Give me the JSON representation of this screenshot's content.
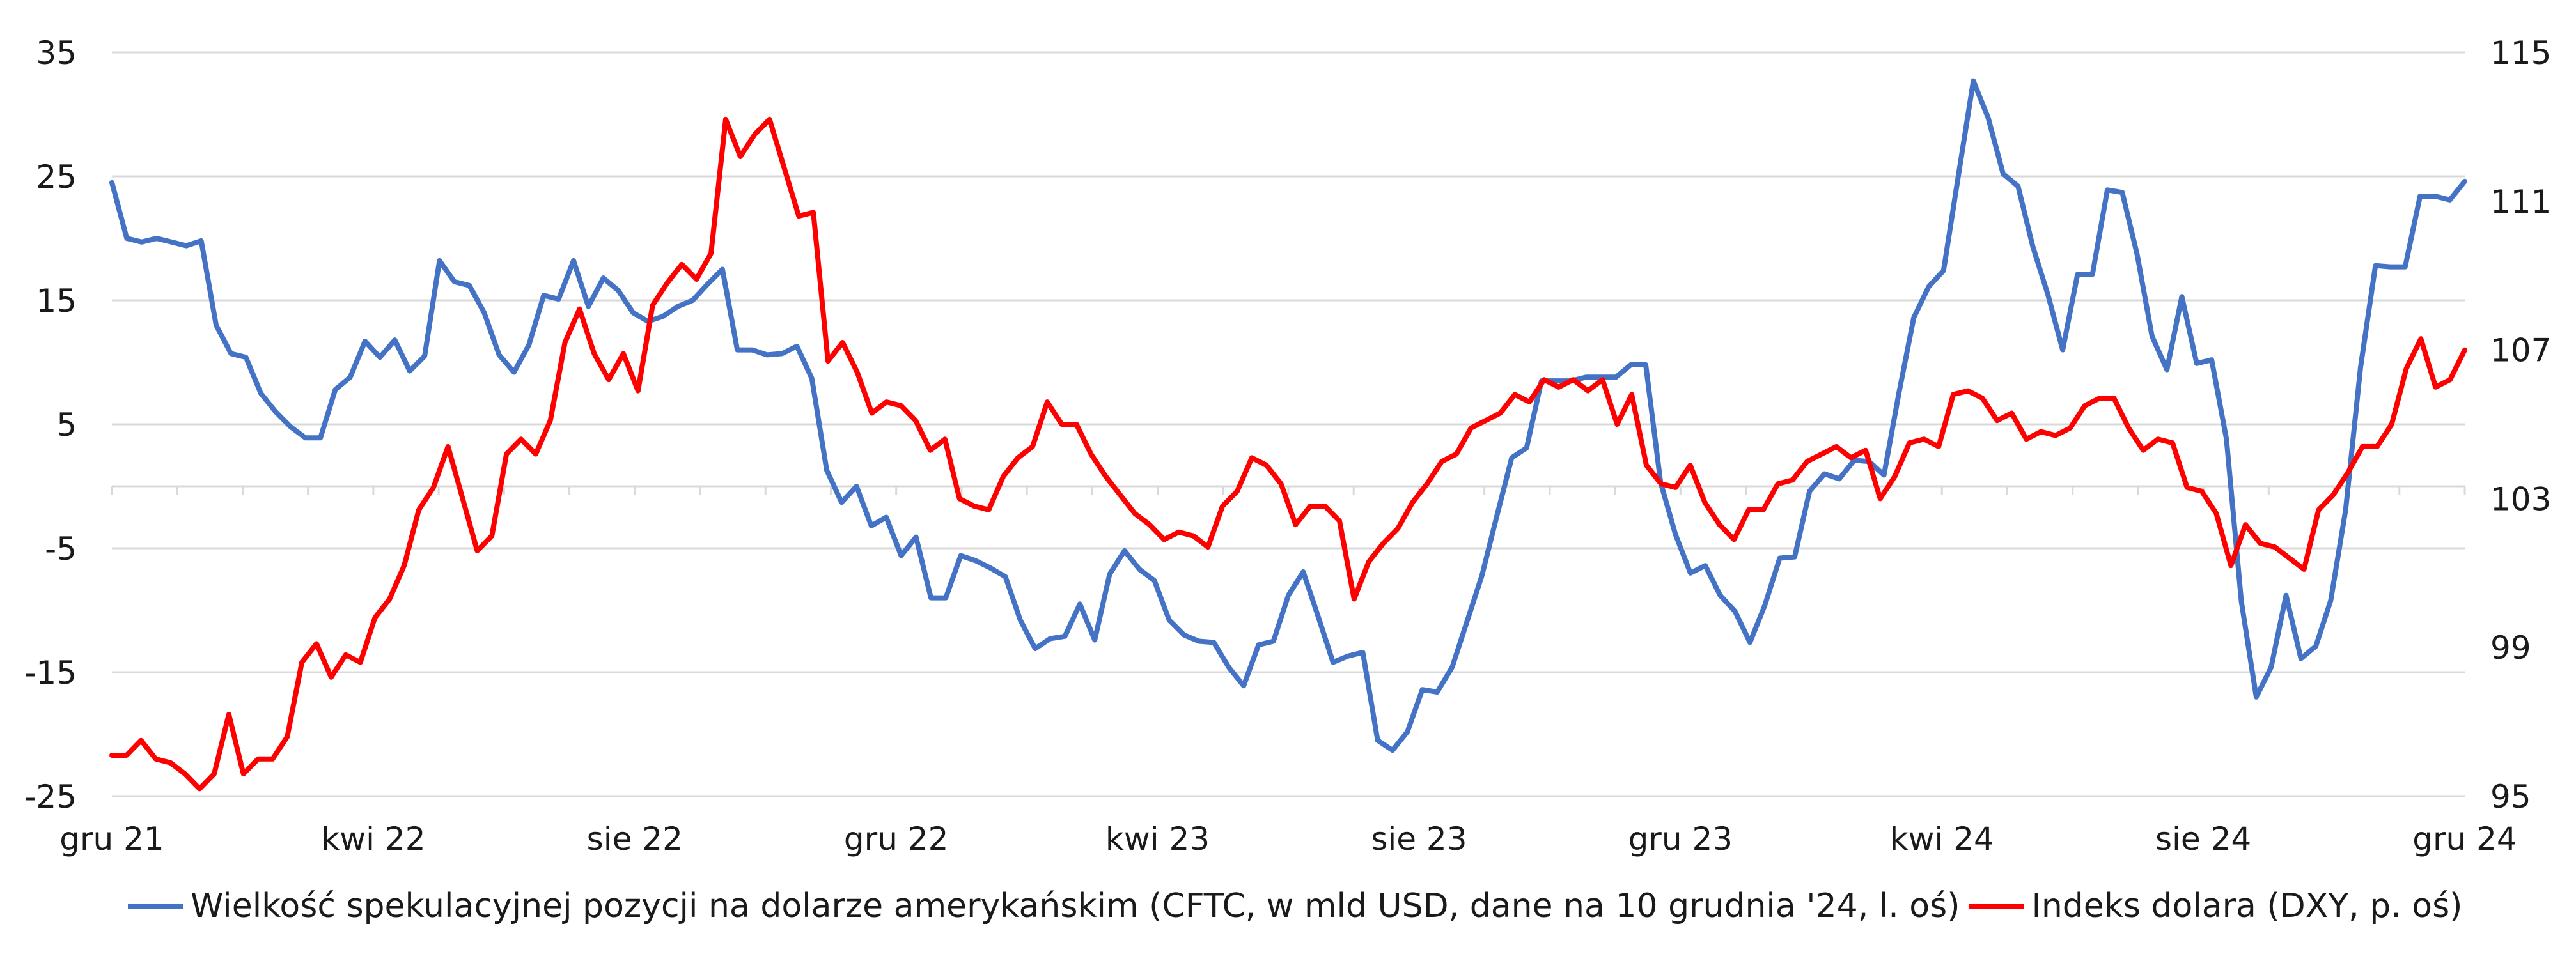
{
  "chart_data": {
    "type": "line",
    "left_axis": {
      "ylim": [
        -25,
        35
      ],
      "ticks": [
        "35",
        "25",
        "15",
        "5",
        "-5",
        "-15",
        "-25"
      ]
    },
    "right_axis": {
      "ylim": [
        95,
        115
      ],
      "ticks": [
        "115",
        "111",
        "107",
        "103",
        "99",
        "95"
      ]
    },
    "x_ticks": [
      "gru 21",
      "kwi 22",
      "sie 22",
      "gru 22",
      "kwi 23",
      "sie 23",
      "gru 23",
      "kwi 24",
      "sie 24",
      "gru 24"
    ],
    "grid": "horizontal",
    "legend_position": "bottom",
    "series": [
      {
        "name": "Wielkość spekulacyjnej pozycji na dolarze amerykańskim (CFTC, w mld USD, dane na 10 grudnia '24, l. oś)",
        "axis": "left",
        "color": "#4472C4",
        "values": [
          24.5,
          20,
          19.7,
          20,
          19.7,
          19.4,
          19.8,
          13,
          10.7,
          10.4,
          7.5,
          6,
          4.8,
          3.9,
          3.9,
          7.8,
          8.8,
          11.7,
          10.4,
          11.8,
          9.3,
          10.5,
          18.2,
          16.5,
          16.2,
          14,
          10.6,
          9.2,
          11.4,
          15.4,
          15.1,
          18.2,
          14.5,
          16.8,
          15.8,
          14,
          13.3,
          13.7,
          14.5,
          15,
          16.3,
          17.5,
          11,
          11,
          10.6,
          10.7,
          11.3,
          8.7,
          1.3,
          -1.3,
          0,
          -3.2,
          -2.5,
          -5.6,
          -4.1,
          -9,
          -9,
          -5.6,
          -6,
          -6.6,
          -7.3,
          -10.8,
          -13.1,
          -12.3,
          -12.1,
          -9.5,
          -12.4,
          -7.1,
          -5.2,
          -6.7,
          -7.6,
          -10.8,
          -12,
          -12.5,
          -12.6,
          -14.6,
          -16.1,
          -12.8,
          -12.5,
          -8.8,
          -6.9,
          -10.5,
          -14.2,
          -13.7,
          -13.4,
          -20.5,
          -21.3,
          -19.8,
          -16.4,
          -16.6,
          -14.6,
          -10.9,
          -7.2,
          -2.4,
          2.3,
          3.1,
          8.5,
          8.5,
          8.5,
          8.8,
          8.8,
          8.8,
          9.8,
          9.8,
          0.3,
          -3.9,
          -7,
          -6.4,
          -8.8,
          -10.1,
          -12.6,
          -9.6,
          -5.8,
          -5.7,
          -0.4,
          1,
          0.6,
          2.1,
          2,
          0.9,
          7.5,
          13.6,
          16.1,
          17.4,
          25.1,
          32.7,
          29.7,
          25.2,
          24.2,
          19.3,
          15.5,
          11,
          17.1,
          17.1,
          23.9,
          23.7,
          18.7,
          12.1,
          9.4,
          15.3,
          9.9,
          10.2,
          3.8,
          -9.3,
          -17,
          -14.6,
          -8.8,
          -13.9,
          -12.9,
          -9.2,
          -1.9,
          9.6,
          17.8,
          17.7,
          17.7,
          23.4,
          23.4,
          23.1,
          24.6
        ]
      },
      {
        "name": "Indeks dolara (DXY, p. oś)",
        "axis": "right",
        "color": "#FF0000",
        "values": [
          96.1,
          96.1,
          96.5,
          96,
          95.9,
          95.6,
          95.2,
          95.6,
          97.2,
          95.6,
          96.0,
          96.0,
          96.6,
          98.6,
          99.1,
          98.2,
          98.8,
          98.6,
          99.8,
          100.3,
          101.2,
          102.7,
          103.3,
          104.4,
          103,
          101.6,
          102,
          104.2,
          104.6,
          104.2,
          105.1,
          107.2,
          108.1,
          106.9,
          106.2,
          106.9,
          105.9,
          108.2,
          108.8,
          109.3,
          108.9,
          109.6,
          113.2,
          112.2,
          112.8,
          113.2,
          111.9,
          110.6,
          110.7,
          106.7,
          107.2,
          106.4,
          105.3,
          105.6,
          105.5,
          105.1,
          104.3,
          104.6,
          103.0,
          102.8,
          102.7,
          103.6,
          104.1,
          104.4,
          105.6,
          105.0,
          105.0,
          104.2,
          103.6,
          103.1,
          102.6,
          102.3,
          101.9,
          102.1,
          102,
          101.7,
          102.8,
          103.2,
          104.1,
          103.9,
          103.4,
          102.3,
          102.8,
          102.8,
          102.4,
          100.3,
          101.3,
          101.8,
          102.2,
          102.9,
          103.4,
          104.0,
          104.2,
          104.9,
          105.1,
          105.3,
          105.8,
          105.6,
          106.2,
          106.0,
          106.2,
          105.9,
          106.2,
          105.0,
          105.8,
          103.9,
          103.4,
          103.3,
          103.9,
          102.9,
          102.3,
          101.9,
          102.7,
          102.7,
          103.4,
          103.5,
          104,
          104.2,
          104.4,
          104.1,
          104.3,
          103.0,
          103.6,
          104.5,
          104.6,
          104.4,
          105.8,
          105.9,
          105.7,
          105.1,
          105.3,
          104.6,
          104.8,
          104.7,
          104.9,
          105.5,
          105.7,
          105.7,
          104.9,
          104.3,
          104.6,
          104.5,
          103.3,
          103.2,
          102.6,
          101.2,
          102.3,
          101.8,
          101.7,
          101.4,
          101.1,
          102.7,
          103.1,
          103.7,
          104.4,
          104.4,
          105.0,
          106.5,
          107.3,
          106,
          106.2,
          107
        ]
      }
    ]
  }
}
